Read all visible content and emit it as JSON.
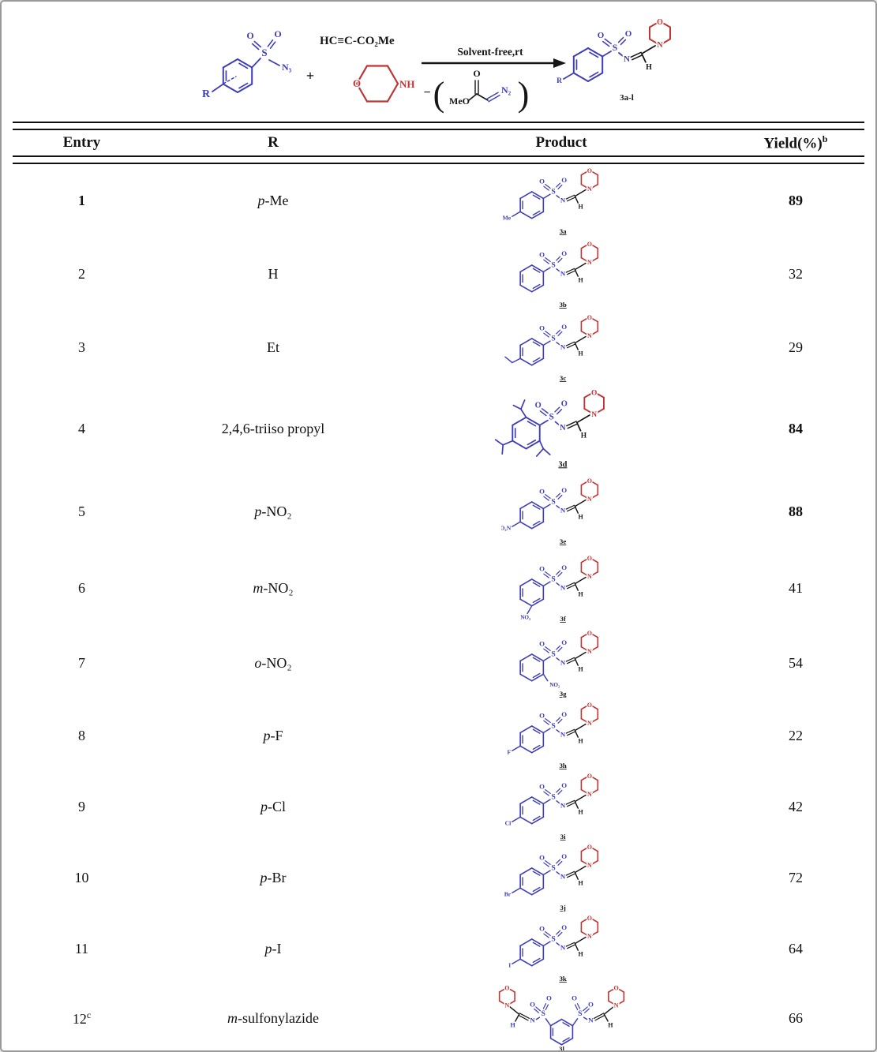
{
  "page": {
    "background": "#ffffff",
    "border_color": "#9a9a9a"
  },
  "colors": {
    "structure_blue": "#3d3dbb",
    "structure_red": "#c03434",
    "text_black": "#161616"
  },
  "scheme": {
    "reactant_r": "R",
    "azide_n3": "N₃",
    "plus": "+",
    "alkyne": "HC≡C-CO₂Me",
    "morpholine_o": "O",
    "morpholine_nh": "NH",
    "arrow_conditions": "Solvent-free,rt",
    "minus": "−",
    "paren_open": "(",
    "paren_close": ")",
    "byproduct_meo": "MeO",
    "byproduct_o": "O",
    "byproduct_n2": "N₂",
    "product_r": "R",
    "product_label": "3a-l"
  },
  "table": {
    "headers": {
      "entry": "Entry",
      "r": "R",
      "product": "Product",
      "yield": "Yield(%)",
      "yield_sup": "b"
    },
    "atoms": {
      "s": "S",
      "o": "O",
      "n": "N",
      "h": "H"
    },
    "rows": [
      {
        "entry": "1",
        "entry_sup": "",
        "entry_bold": true,
        "r_italic": "p",
        "r_text": "-Me",
        "sub": "Me",
        "sub_type": "text",
        "sub_pos": "para",
        "label": "3a",
        "yield": "89",
        "yield_bold": true
      },
      {
        "entry": "2",
        "entry_sup": "",
        "entry_bold": false,
        "r_italic": "",
        "r_text": "H",
        "sub": "",
        "sub_type": "none",
        "sub_pos": "",
        "label": "3b",
        "yield": "32",
        "yield_bold": false
      },
      {
        "entry": "3",
        "entry_sup": "",
        "entry_bold": false,
        "r_italic": "",
        "r_text": "Et",
        "sub": "",
        "sub_type": "ethyl",
        "sub_pos": "para",
        "label": "3c",
        "yield": "29",
        "yield_bold": false
      },
      {
        "entry": "4",
        "entry_sup": "",
        "entry_bold": false,
        "r_italic": "",
        "r_text": "2,4,6-triiso propyl",
        "sub": "",
        "sub_type": "triisopropyl",
        "sub_pos": "",
        "label": "3d",
        "yield": "84",
        "yield_bold": true
      },
      {
        "entry": "5",
        "entry_sup": "",
        "entry_bold": false,
        "r_italic": "p",
        "r_text": "-NO₂",
        "sub": "O₂N",
        "sub_type": "text",
        "sub_pos": "para",
        "label": "3e",
        "yield": "88",
        "yield_bold": true
      },
      {
        "entry": "6",
        "entry_sup": "",
        "entry_bold": false,
        "r_italic": "m",
        "r_text": "-NO₂",
        "sub": "NO₂",
        "sub_type": "text",
        "sub_pos": "meta",
        "label": "3f",
        "yield": "41",
        "yield_bold": false
      },
      {
        "entry": "7",
        "entry_sup": "",
        "entry_bold": false,
        "r_italic": "o",
        "r_text": "-NO₂",
        "sub": "NO₂",
        "sub_type": "text",
        "sub_pos": "ortho",
        "label": "3g",
        "yield": "54",
        "yield_bold": false
      },
      {
        "entry": "8",
        "entry_sup": "",
        "entry_bold": false,
        "r_italic": "p",
        "r_text": "-F",
        "sub": "F",
        "sub_type": "text",
        "sub_pos": "para",
        "label": "3h",
        "yield": "22",
        "yield_bold": false
      },
      {
        "entry": "9",
        "entry_sup": "",
        "entry_bold": false,
        "r_italic": "p",
        "r_text": "-Cl",
        "sub": "Cl",
        "sub_type": "text",
        "sub_pos": "para",
        "label": "3i",
        "yield": "42",
        "yield_bold": false
      },
      {
        "entry": "10",
        "entry_sup": "",
        "entry_bold": false,
        "r_italic": "p",
        "r_text": "-Br",
        "sub": "Br",
        "sub_type": "text",
        "sub_pos": "para",
        "label": "3j",
        "yield": "72",
        "yield_bold": false
      },
      {
        "entry": "11",
        "entry_sup": "",
        "entry_bold": false,
        "r_italic": "p",
        "r_text": "-I",
        "sub": "I",
        "sub_type": "text",
        "sub_pos": "para",
        "label": "3k",
        "yield": "64",
        "yield_bold": false
      },
      {
        "entry": "12",
        "entry_sup": "c",
        "entry_bold": false,
        "r_italic": "m",
        "r_text": "-sulfonylazide",
        "sub": "",
        "sub_type": "bis",
        "sub_pos": "",
        "label": "3l",
        "yield": "66",
        "yield_bold": false
      }
    ]
  }
}
